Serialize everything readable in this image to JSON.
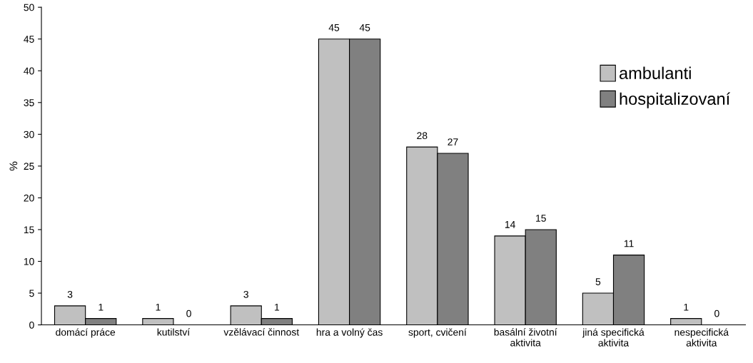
{
  "chart_data": {
    "type": "bar",
    "ylabel": "%",
    "categories": [
      "domácí práce",
      "kutilství",
      "vzělávací činnost",
      "hra a volný čas",
      "sport, cvičení",
      "basální životní\naktivita",
      "jiná specifická\naktivita",
      "nespecifická\naktivita"
    ],
    "series": [
      {
        "name": "ambulanti",
        "color": "#c0c0c0",
        "values": [
          3,
          1,
          3,
          45,
          28,
          14,
          5,
          1
        ]
      },
      {
        "name": "hospitalizovaní",
        "color": "#808080",
        "values": [
          1,
          0,
          1,
          45,
          27,
          15,
          11,
          0
        ]
      }
    ],
    "ylim": [
      0,
      50
    ],
    "yticks": [
      0,
      5,
      10,
      15,
      20,
      25,
      30,
      35,
      40,
      45,
      50
    ],
    "grid": false,
    "legend": "right",
    "data_labels": true
  }
}
